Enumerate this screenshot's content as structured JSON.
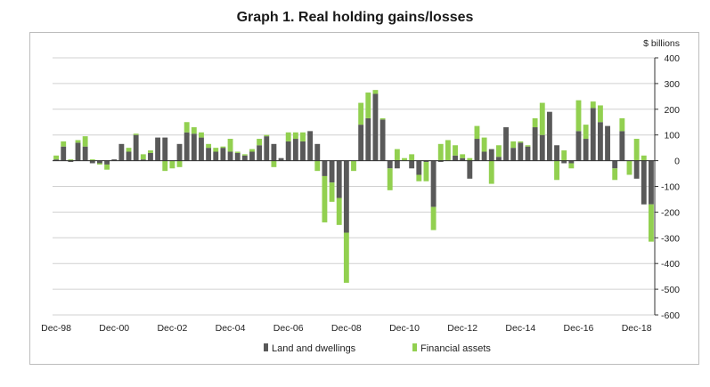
{
  "title": "Graph 1. Real holding gains/losses",
  "chart_data": {
    "type": "bar",
    "stacked": true,
    "unit_label": "$ billions",
    "ylim": [
      -600,
      400
    ],
    "yticks": [
      400,
      300,
      200,
      100,
      0,
      -100,
      -200,
      -300,
      -400,
      -500,
      -600
    ],
    "xtick_labels": [
      "Dec-98",
      "Dec-00",
      "Dec-02",
      "Dec-04",
      "Dec-06",
      "Dec-08",
      "Dec-10",
      "Dec-12",
      "Dec-14",
      "Dec-16",
      "Dec-18"
    ],
    "grid": true,
    "legend_position": "bottom",
    "colors": {
      "land": "#595959",
      "financial": "#92d050",
      "grid": "#d0d0d0"
    },
    "series": [
      {
        "name": "Land and dwellings",
        "values": [
          5,
          55,
          -5,
          70,
          55,
          -10,
          -10,
          -15,
          5,
          65,
          35,
          100,
          5,
          30,
          90,
          90,
          0,
          65,
          110,
          105,
          90,
          50,
          35,
          50,
          35,
          30,
          20,
          35,
          60,
          95,
          65,
          10,
          75,
          85,
          75,
          115,
          65,
          -60,
          -85,
          -145,
          -280,
          0,
          140,
          165,
          260,
          160,
          -30,
          -30,
          0,
          -30,
          -55,
          -5,
          -180,
          -5,
          0,
          20,
          10,
          -70,
          85,
          35,
          45,
          15,
          130,
          50,
          70,
          55,
          130,
          100,
          190,
          60,
          -10,
          -10,
          115,
          85,
          205,
          150,
          135,
          -30,
          115,
          0,
          -70,
          -170,
          -170
        ]
      },
      {
        "name": "Financial assets",
        "values": [
          15,
          20,
          5,
          10,
          40,
          5,
          -5,
          -20,
          0,
          0,
          15,
          5,
          20,
          10,
          0,
          -40,
          -30,
          -25,
          40,
          25,
          20,
          15,
          15,
          5,
          50,
          5,
          5,
          10,
          25,
          5,
          -25,
          0,
          35,
          25,
          35,
          0,
          -40,
          -180,
          -75,
          -105,
          -195,
          -40,
          85,
          100,
          15,
          5,
          -85,
          45,
          10,
          25,
          -25,
          -75,
          -90,
          65,
          80,
          40,
          15,
          10,
          50,
          55,
          -90,
          45,
          0,
          25,
          5,
          5,
          35,
          125,
          0,
          -75,
          40,
          -20,
          120,
          55,
          25,
          65,
          0,
          -45,
          50,
          -55,
          85,
          20,
          -145
        ]
      }
    ]
  }
}
